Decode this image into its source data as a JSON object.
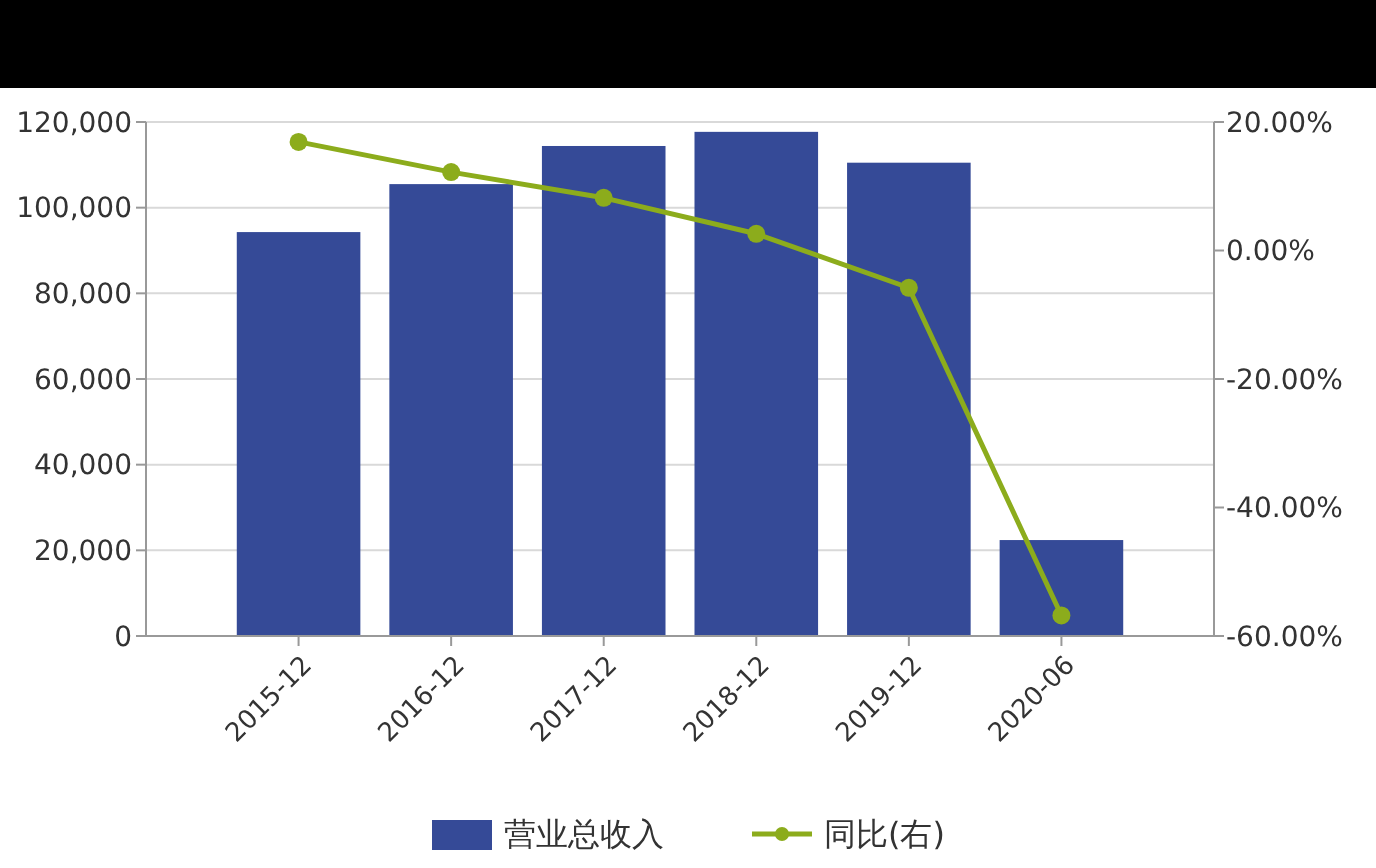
{
  "chart_data": {
    "type": "bar",
    "categories": [
      "2015-12",
      "2016-12",
      "2017-12",
      "2018-12",
      "2019-12",
      "2020-06"
    ],
    "series": [
      {
        "name": "营业总收入",
        "color": "#354a97",
        "values": [
          94300,
          105500,
          114400,
          117700,
          110500,
          22400
        ]
      },
      {
        "name": "同比(右)",
        "type": "line",
        "axis": "y2",
        "color": "#8cac1c",
        "values": [
          16.9,
          12.2,
          8.2,
          2.6,
          -5.8,
          -56.8
        ]
      }
    ],
    "ylim": [
      0,
      120000
    ],
    "yticks": [
      {
        "value": 0,
        "label": "0"
      },
      {
        "value": 20000,
        "label": "20,000"
      },
      {
        "value": 40000,
        "label": "40,000"
      },
      {
        "value": 60000,
        "label": "60,000"
      },
      {
        "value": 80000,
        "label": "80,000"
      },
      {
        "value": 100000,
        "label": "100,000"
      },
      {
        "value": 120000,
        "label": "120,000"
      }
    ],
    "y2lim": [
      -60,
      20
    ],
    "y2ticks": [
      {
        "value": -60,
        "label": "-60.00%"
      },
      {
        "value": -40,
        "label": "-40.00%"
      },
      {
        "value": -20,
        "label": "-20.00%"
      },
      {
        "value": 0,
        "label": "0.00%"
      },
      {
        "value": 20,
        "label": "20.00%"
      }
    ],
    "grid": "y",
    "legend": "bottom",
    "marker": "circle",
    "line_style": "solid"
  }
}
